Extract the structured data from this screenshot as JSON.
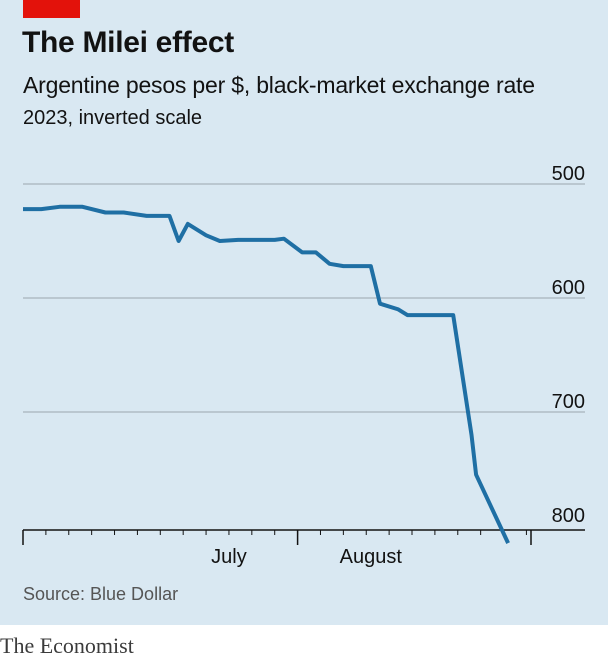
{
  "header": {
    "title": "The Milei effect",
    "subtitle": "Argentine pesos per $, black-market exchange rate",
    "note": "2023, inverted scale"
  },
  "source": "Source: Blue Dollar",
  "brand": "The Economist",
  "colors": {
    "background": "#d9e8f2",
    "line": "#1f6fa4",
    "grid": "#a8b3bb",
    "accent": "#e3120b"
  },
  "chart_data": {
    "type": "line",
    "title": "The Milei effect",
    "subtitle": "Argentine pesos per $, black-market exchange rate",
    "ylim": [
      800,
      500
    ],
    "y_inverted": true,
    "yticks": [
      500,
      600,
      700,
      800
    ],
    "ytick_labels": [
      "500",
      "600",
      "700",
      "800"
    ],
    "x_period_labels": [
      "July",
      "August"
    ],
    "grid": true,
    "series": [
      {
        "x": [
          "2023-06-01",
          "2023-06-05",
          "2023-06-09",
          "2023-06-14",
          "2023-06-19",
          "2023-06-23",
          "2023-06-28",
          "2023-07-03",
          "2023-07-05",
          "2023-07-07",
          "2023-07-11",
          "2023-07-14",
          "2023-07-18",
          "2023-07-22",
          "2023-07-26",
          "2023-07-28",
          "2023-08-01",
          "2023-08-04",
          "2023-08-07",
          "2023-08-10",
          "2023-08-16",
          "2023-08-18",
          "2023-08-22",
          "2023-08-24",
          "2023-08-28",
          "2023-09-03",
          "2023-09-07",
          "2023-09-08",
          "2023-09-15"
        ],
        "values": [
          522,
          522,
          520,
          520,
          525,
          525,
          528,
          528,
          550,
          535,
          545,
          550,
          549,
          549,
          549,
          548,
          560,
          560,
          570,
          572,
          572,
          605,
          610,
          615,
          615,
          615,
          720,
          755,
          815
        ]
      }
    ]
  }
}
